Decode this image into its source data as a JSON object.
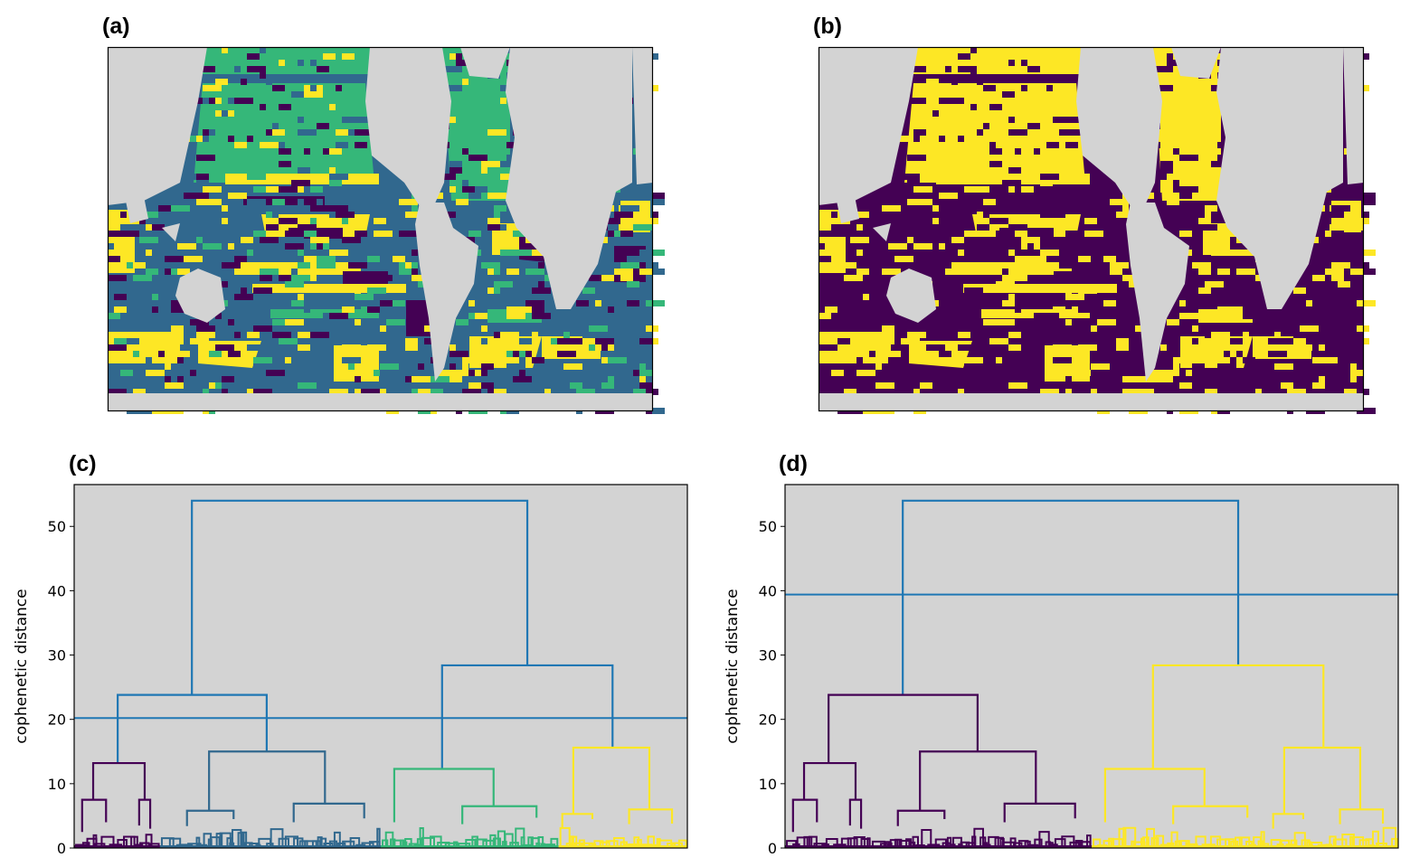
{
  "panels": {
    "a": {
      "label": "(a)"
    },
    "b": {
      "label": "(b)"
    },
    "c": {
      "label": "(c)"
    },
    "d": {
      "label": "(d)"
    }
  },
  "colors": {
    "land": "#d3d3d3",
    "plot_bg": "#d3d3d3",
    "above_threshold": "#1f77b4",
    "viridis4": [
      "#440154",
      "#31688e",
      "#35b779",
      "#fde725"
    ],
    "viridis2": [
      "#440154",
      "#fde725"
    ]
  },
  "chart_data": [
    {
      "type": "heatmap",
      "panel": "a",
      "title": "(a)",
      "description_clusters": 4,
      "class_colors": [
        "#440154",
        "#31688e",
        "#35b779",
        "#fde725"
      ]
    },
    {
      "type": "heatmap",
      "panel": "b",
      "title": "(b)",
      "description_clusters": 2,
      "class_mapping_from_a": [
        0,
        0,
        1,
        1
      ],
      "class_colors": [
        "#440154",
        "#fde725"
      ]
    },
    {
      "type": "dendrogram",
      "panel": "c",
      "title": "(c)",
      "ylabel": "cophenetic distance",
      "ylim": [
        0,
        56.5
      ],
      "yticks": [
        "0",
        "10",
        "20",
        "30",
        "40",
        "50"
      ],
      "ytick_values": [
        0,
        10,
        20,
        30,
        40,
        50
      ],
      "threshold": 20.2,
      "leaf_clusters": [
        {
          "key": "p",
          "range": [
            0,
            14
          ]
        },
        {
          "key": "b",
          "range": [
            14,
            50
          ]
        },
        {
          "key": "g",
          "range": [
            50,
            79
          ]
        },
        {
          "key": "y",
          "range": [
            79,
            100
          ]
        }
      ],
      "link_colors": {
        "root": "#1f77b4",
        "L": "#1f77b4",
        "R": "#1f77b4",
        "p": "#440154",
        "b": "#31688e",
        "g": "#35b779",
        "y": "#fde725"
      },
      "links": [
        {
          "g": "root",
          "xl": 19.2,
          "xr": 73.9,
          "h": 54.0,
          "hl": 23.8,
          "hr": 28.4
        },
        {
          "g": "L",
          "xl": 7.1,
          "xr": 31.4,
          "h": 23.8,
          "hl": 13.2,
          "hr": 15.0
        },
        {
          "g": "R",
          "xl": 60.0,
          "xr": 87.8,
          "h": 28.4,
          "hl": 12.3,
          "hr": 15.6
        },
        {
          "g": "p",
          "xl": 3.1,
          "xr": 11.5,
          "h": 13.2,
          "hl": 7.5,
          "hr": 7.5
        },
        {
          "g": "p",
          "xl": 1.3,
          "xr": 5.2,
          "h": 7.5,
          "hl": 2.5,
          "hr": 4.0
        },
        {
          "g": "p",
          "xl": 10.6,
          "xr": 12.4,
          "h": 7.5,
          "hl": 3.5,
          "hr": 3.0
        },
        {
          "g": "b",
          "xl": 22.0,
          "xr": 40.9,
          "h": 15.0,
          "hl": 5.8,
          "hr": 6.9
        },
        {
          "g": "b",
          "xl": 18.4,
          "xr": 26.0,
          "h": 5.8,
          "hl": 3.4,
          "hr": 4.5
        },
        {
          "g": "b",
          "xl": 35.8,
          "xr": 47.3,
          "h": 6.9,
          "hl": 4.0,
          "hr": 4.6
        },
        {
          "g": "g",
          "xl": 52.2,
          "xr": 68.4,
          "h": 12.3,
          "hl": 4.0,
          "hr": 6.5
        },
        {
          "g": "g",
          "xl": 63.3,
          "xr": 75.4,
          "h": 6.5,
          "hl": 3.7,
          "hr": 4.7
        },
        {
          "g": "y",
          "xl": 81.4,
          "xr": 93.8,
          "h": 15.6,
          "hl": 5.3,
          "hr": 6.0
        },
        {
          "g": "y",
          "xl": 79.6,
          "xr": 84.5,
          "h": 5.3,
          "hl": 3.0,
          "hr": 4.5
        },
        {
          "g": "y",
          "xl": 90.5,
          "xr": 97.5,
          "h": 6.0,
          "hl": 3.7,
          "hr": 3.8
        }
      ]
    },
    {
      "type": "dendrogram",
      "panel": "d",
      "title": "(d)",
      "ylabel": "cophenetic distance",
      "ylim": [
        0,
        56.5
      ],
      "yticks": [
        "0",
        "10",
        "20",
        "30",
        "40",
        "50"
      ],
      "ytick_values": [
        0,
        10,
        20,
        30,
        40,
        50
      ],
      "threshold": 39.4,
      "leaf_clusters": [
        {
          "key": "p",
          "range": [
            0,
            14
          ]
        },
        {
          "key": "b",
          "range": [
            14,
            50
          ]
        },
        {
          "key": "g",
          "range": [
            50,
            79
          ]
        },
        {
          "key": "y",
          "range": [
            79,
            100
          ]
        }
      ],
      "link_colors": {
        "root": "#1f77b4",
        "L": "#440154",
        "R": "#fde725",
        "p": "#440154",
        "b": "#440154",
        "g": "#fde725",
        "y": "#fde725"
      },
      "links_same_as_panel": "c"
    }
  ]
}
